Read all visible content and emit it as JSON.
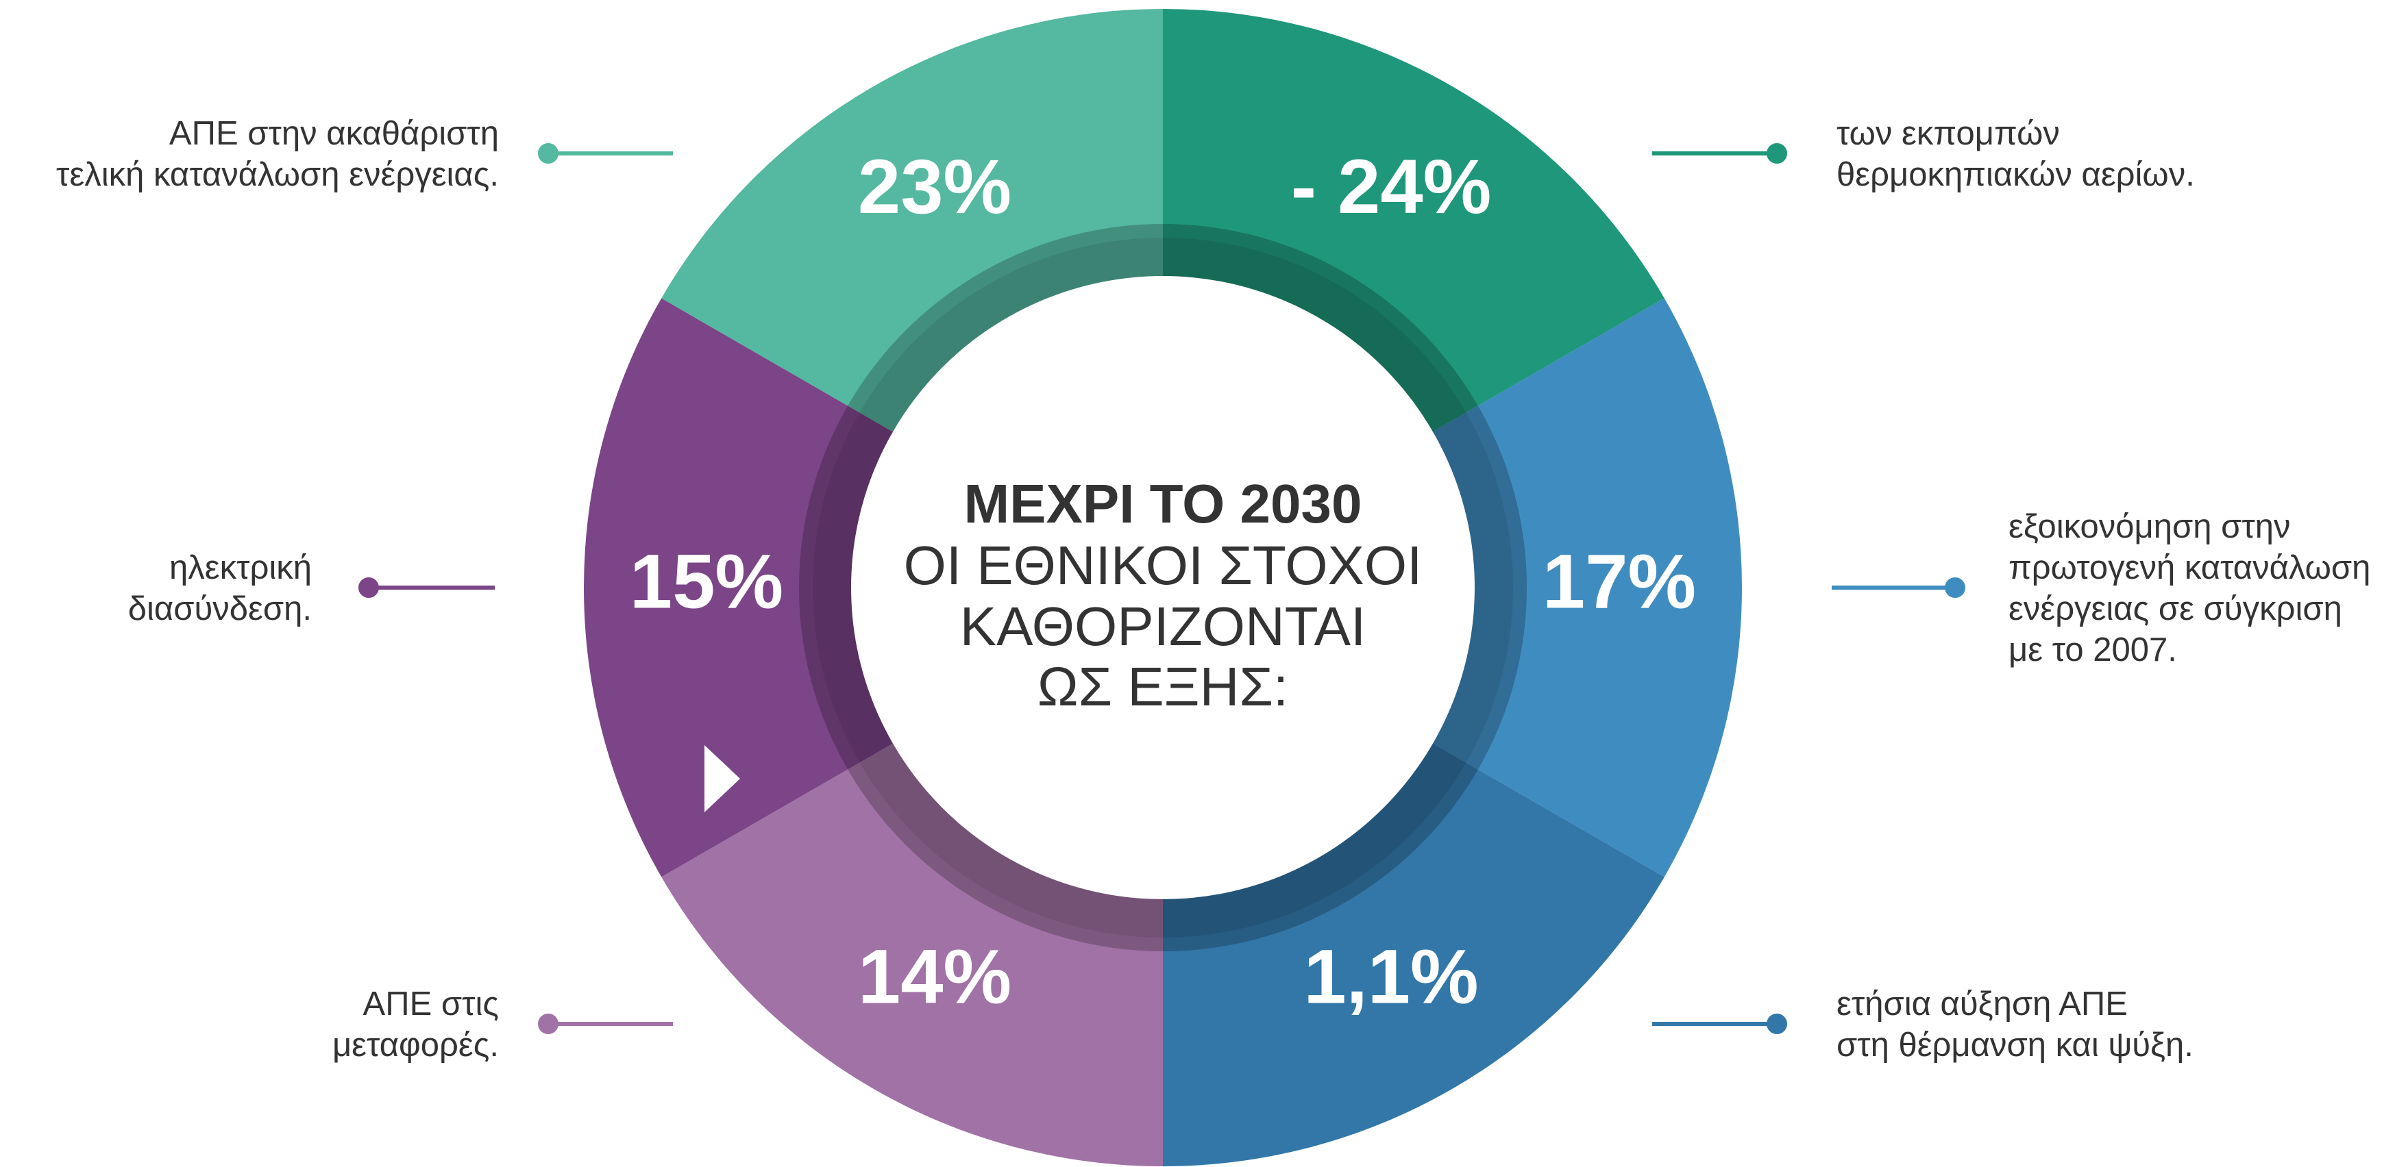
{
  "center": {
    "lines": [
      "ΜΕΧΡΙ ΤΟ 2030",
      "ΟΙ ΕΘΝΙΚΟΙ ΣΤΟΧΟΙ",
      "ΚΑΘΟΡΙΖΟΝΤΑΙ",
      "ΩΣ ΕΞΗΣ:"
    ]
  },
  "segments": [
    {
      "value": "- 24%",
      "color": "#1f977a",
      "description": [
        "των εκπομπών",
        "θερμοκηπιακών αερίων."
      ]
    },
    {
      "value": "17%",
      "color": "#3f8cc1",
      "description": [
        "εξοικονόμηση στην",
        "πρωτογενή κατανάλωση",
        "ενέργειας σε σύγκριση",
        "με το 2007."
      ]
    },
    {
      "value": "1,1%",
      "color": "#3277a8",
      "description": [
        "ετήσια αύξηση ΑΠΕ",
        "στη θέρμανση και ψύξη."
      ]
    },
    {
      "value": "14%",
      "color": "#a072a5",
      "description": [
        "ΑΠΕ στις",
        "μεταφορές."
      ]
    },
    {
      "value": "15%",
      "color": "#7b4588",
      "description": [
        "ηλεκτρική",
        "διασύνδεση."
      ]
    },
    {
      "value": "23%",
      "color": "#55b8a0",
      "description": [
        "ΑΠΕ στην ακαθάριστη",
        "τελική κατανάλωση ενέργειας."
      ]
    }
  ]
}
